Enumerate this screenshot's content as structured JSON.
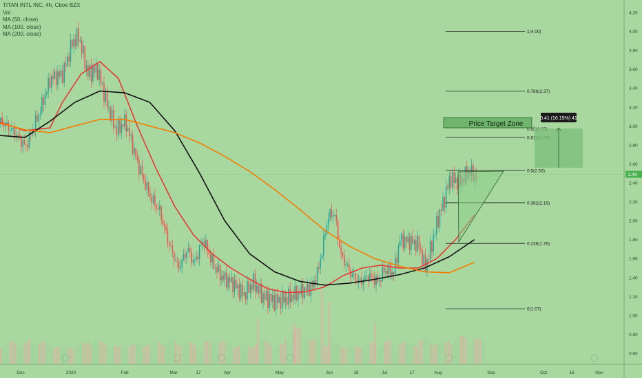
{
  "header": {
    "symbol_line": "TITAN INTL INC, 4h, Cboe BZX",
    "indicators": [
      "Vol",
      "MA (50, close)",
      "MA (100, close)",
      "MA (200, close)"
    ]
  },
  "colors": {
    "background": "#a8d8a0",
    "up": "#26a69a",
    "down": "#ef5350",
    "ma50": "#e53935",
    "ma100": "#111111",
    "ma200": "#f57c00",
    "fib_line": "#1a1a1a",
    "zone": "#7cbf7a"
  },
  "chart_data": {
    "type": "candlestick",
    "title": "TITAN INTL INC, 4h, Cboe BZX",
    "ylim": [
      0.5,
      4.3
    ],
    "y_ticks": [
      "4.20",
      "4.00",
      "3.80",
      "3.60",
      "3.40",
      "3.20",
      "3.00",
      "2.80",
      "2.60",
      "2.40",
      "2.20",
      "2.00",
      "1.80",
      "1.60",
      "1.40",
      "1.20",
      "1.00",
      "0.80",
      "0.60"
    ],
    "x_ticks": [
      "Dec",
      "2020",
      "Feb",
      "Mar",
      "17",
      "Apr",
      "May",
      "Jun",
      "16",
      "Jul",
      "17",
      "Aug",
      "Sep",
      "Oct",
      "16",
      "Nov"
    ],
    "last_price_label": "2.49",
    "fib_levels": [
      {
        "label": "1(4.00)",
        "value": 4.0
      },
      {
        "label": "0.786(3.37)",
        "value": 3.37
      },
      {
        "label": "0.65(2.97)",
        "value": 2.97
      },
      {
        "label": "0.618(2.88)",
        "value": 2.88
      },
      {
        "label": "0.5(2.53)",
        "value": 2.53
      },
      {
        "label": "0.382(2.19)",
        "value": 2.19
      },
      {
        "label": "0.236(1.76)",
        "value": 1.76
      },
      {
        "label": "0(1.07)",
        "value": 1.07
      }
    ],
    "annotations": {
      "target_zone": "Price Target Zone",
      "measure": "0.41 (16.15%) 41"
    },
    "ma_series": [
      {
        "name": "MA (50, close)",
        "points": [
          [
            0,
            3.04
          ],
          [
            0.04,
            2.95
          ],
          [
            0.08,
            2.98
          ],
          [
            0.1,
            3.25
          ],
          [
            0.13,
            3.55
          ],
          [
            0.16,
            3.68
          ],
          [
            0.19,
            3.5
          ],
          [
            0.22,
            3.0
          ],
          [
            0.25,
            2.55
          ],
          [
            0.28,
            2.15
          ],
          [
            0.31,
            1.85
          ],
          [
            0.34,
            1.65
          ],
          [
            0.37,
            1.5
          ],
          [
            0.4,
            1.38
          ],
          [
            0.43,
            1.28
          ],
          [
            0.46,
            1.24
          ],
          [
            0.49,
            1.25
          ],
          [
            0.52,
            1.3
          ],
          [
            0.55,
            1.42
          ],
          [
            0.58,
            1.5
          ],
          [
            0.61,
            1.53
          ],
          [
            0.64,
            1.5
          ],
          [
            0.67,
            1.5
          ],
          [
            0.7,
            1.6
          ],
          [
            0.73,
            1.8
          ],
          [
            0.76,
            2.06
          ]
        ]
      },
      {
        "name": "MA (100, close)",
        "points": [
          [
            0,
            2.9
          ],
          [
            0.04,
            2.88
          ],
          [
            0.08,
            3.05
          ],
          [
            0.12,
            3.25
          ],
          [
            0.16,
            3.37
          ],
          [
            0.2,
            3.35
          ],
          [
            0.24,
            3.25
          ],
          [
            0.28,
            2.95
          ],
          [
            0.32,
            2.5
          ],
          [
            0.36,
            2.0
          ],
          [
            0.4,
            1.65
          ],
          [
            0.44,
            1.46
          ],
          [
            0.48,
            1.36
          ],
          [
            0.52,
            1.32
          ],
          [
            0.56,
            1.34
          ],
          [
            0.6,
            1.38
          ],
          [
            0.64,
            1.43
          ],
          [
            0.68,
            1.5
          ],
          [
            0.72,
            1.62
          ],
          [
            0.76,
            1.8
          ]
        ]
      },
      {
        "name": "MA (200, close)",
        "points": [
          [
            0,
            3.03
          ],
          [
            0.04,
            2.96
          ],
          [
            0.08,
            2.93
          ],
          [
            0.12,
            3.0
          ],
          [
            0.16,
            3.07
          ],
          [
            0.2,
            3.07
          ],
          [
            0.24,
            3.0
          ],
          [
            0.28,
            2.93
          ],
          [
            0.32,
            2.82
          ],
          [
            0.36,
            2.68
          ],
          [
            0.4,
            2.52
          ],
          [
            0.44,
            2.33
          ],
          [
            0.48,
            2.12
          ],
          [
            0.52,
            1.9
          ],
          [
            0.56,
            1.73
          ],
          [
            0.6,
            1.6
          ],
          [
            0.64,
            1.52
          ],
          [
            0.68,
            1.46
          ],
          [
            0.72,
            1.45
          ],
          [
            0.76,
            1.56
          ]
        ]
      }
    ],
    "price_path": [
      [
        0,
        3.05
      ],
      [
        0.02,
        2.95
      ],
      [
        0.04,
        2.78
      ],
      [
        0.06,
        3.1
      ],
      [
        0.08,
        3.5
      ],
      [
        0.1,
        3.55
      ],
      [
        0.115,
        3.88
      ],
      [
        0.125,
        3.95
      ],
      [
        0.14,
        3.55
      ],
      [
        0.155,
        3.6
      ],
      [
        0.17,
        3.25
      ],
      [
        0.185,
        2.95
      ],
      [
        0.2,
        3.05
      ],
      [
        0.22,
        2.6
      ],
      [
        0.24,
        2.25
      ],
      [
        0.255,
        2.1
      ],
      [
        0.27,
        1.75
      ],
      [
        0.285,
        1.5
      ],
      [
        0.3,
        1.7
      ],
      [
        0.31,
        1.55
      ],
      [
        0.325,
        1.8
      ],
      [
        0.34,
        1.55
      ],
      [
        0.355,
        1.4
      ],
      [
        0.37,
        1.35
      ],
      [
        0.39,
        1.22
      ],
      [
        0.405,
        1.35
      ],
      [
        0.42,
        1.2
      ],
      [
        0.44,
        1.15
      ],
      [
        0.46,
        1.18
      ],
      [
        0.48,
        1.25
      ],
      [
        0.5,
        1.3
      ],
      [
        0.51,
        1.5
      ],
      [
        0.525,
        2.05
      ],
      [
        0.535,
        2.08
      ],
      [
        0.545,
        1.65
      ],
      [
        0.56,
        1.45
      ],
      [
        0.575,
        1.35
      ],
      [
        0.59,
        1.42
      ],
      [
        0.605,
        1.35
      ],
      [
        0.615,
        1.48
      ],
      [
        0.63,
        1.45
      ],
      [
        0.64,
        1.8
      ],
      [
        0.655,
        1.78
      ],
      [
        0.67,
        1.75
      ],
      [
        0.68,
        1.5
      ],
      [
        0.69,
        1.72
      ],
      [
        0.7,
        2.0
      ],
      [
        0.71,
        2.2
      ],
      [
        0.72,
        2.45
      ],
      [
        0.735,
        2.4
      ],
      [
        0.75,
        2.52
      ],
      [
        0.765,
        2.45
      ]
    ],
    "volume_profile": [
      0.4,
      0.5,
      0.45,
      0.6,
      0.5,
      0.4,
      0.35,
      0.3,
      0.45,
      0.6,
      0.5,
      0.35,
      0.3,
      0.4,
      0.45,
      0.5,
      0.55,
      0.6,
      0.5,
      0.45,
      0.4,
      0.5,
      0.6,
      0.45,
      0.4,
      0.35,
      0.5,
      0.55,
      0.4,
      0.7,
      1.0,
      0.8,
      0.6,
      0.5,
      0.45,
      0.4,
      0.35,
      0.4,
      0.45,
      0.5,
      0.55,
      0.5,
      0.45,
      0.6,
      0.55,
      0.5,
      0.6,
      0.7,
      0.65,
      0.6
    ]
  }
}
